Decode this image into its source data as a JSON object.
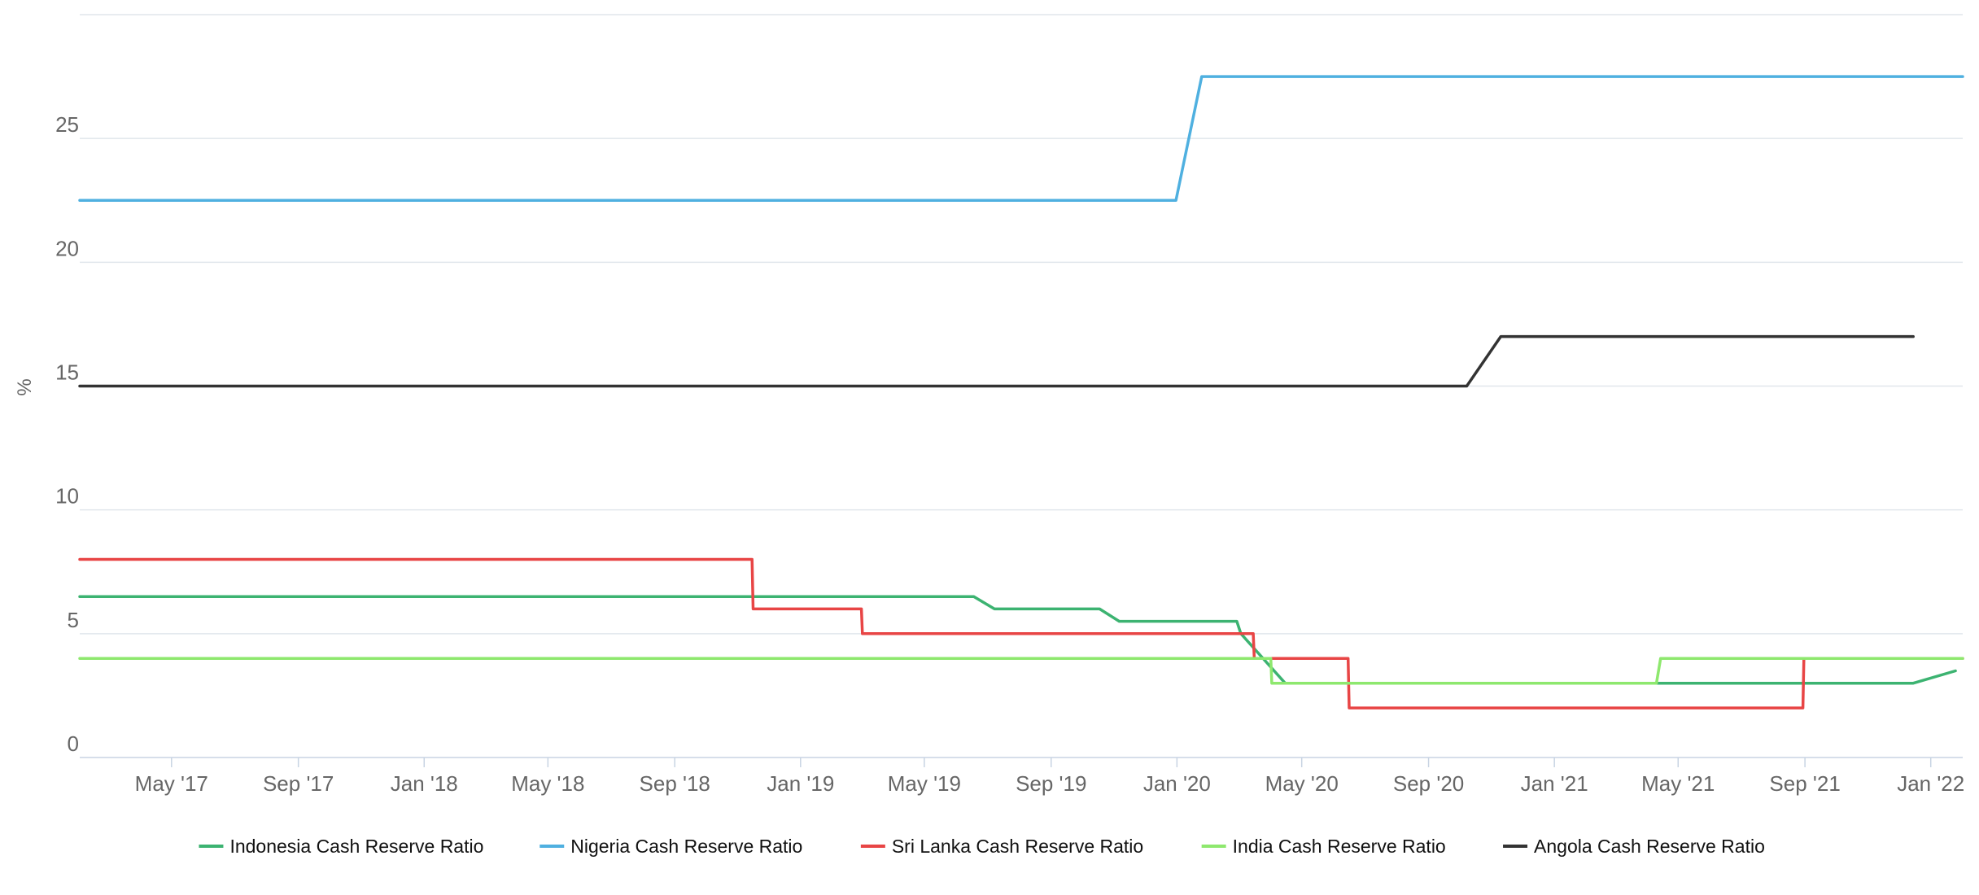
{
  "chart_data": {
    "type": "line",
    "ylabel": "%",
    "ylim": [
      0,
      30
    ],
    "yticks": [
      0,
      5,
      10,
      15,
      20,
      25
    ],
    "xlim": [
      "2017-02-01",
      "2022-02-01"
    ],
    "xticks": [
      {
        "date": "2017-05-01",
        "label": "May '17"
      },
      {
        "date": "2017-09-01",
        "label": "Sep '17"
      },
      {
        "date": "2018-01-01",
        "label": "Jan '18"
      },
      {
        "date": "2018-05-01",
        "label": "May '18"
      },
      {
        "date": "2018-09-01",
        "label": "Sep '18"
      },
      {
        "date": "2019-01-01",
        "label": "Jan '19"
      },
      {
        "date": "2019-05-01",
        "label": "May '19"
      },
      {
        "date": "2019-09-01",
        "label": "Sep '19"
      },
      {
        "date": "2020-01-01",
        "label": "Jan '20"
      },
      {
        "date": "2020-05-01",
        "label": "May '20"
      },
      {
        "date": "2020-09-01",
        "label": "Sep '20"
      },
      {
        "date": "2021-01-01",
        "label": "Jan '21"
      },
      {
        "date": "2021-05-01",
        "label": "May '21"
      },
      {
        "date": "2021-09-01",
        "label": "Sep '21"
      },
      {
        "date": "2022-01-01",
        "label": "Jan '22"
      }
    ],
    "grid": true,
    "legend_position": "bottom",
    "series": [
      {
        "name": "Indonesia Cash Reserve Ratio",
        "color": "#3cb371",
        "points": [
          [
            "2017-02-01",
            6.5
          ],
          [
            "2019-06-18",
            6.5
          ],
          [
            "2019-07-08",
            6.0
          ],
          [
            "2019-10-18",
            6.0
          ],
          [
            "2019-11-06",
            5.5
          ],
          [
            "2020-02-28",
            5.5
          ],
          [
            "2020-03-03",
            5.0
          ],
          [
            "2020-04-15",
            3.0
          ],
          [
            "2021-10-15",
            3.0
          ],
          [
            "2021-12-15",
            3.0
          ],
          [
            "2022-01-25",
            3.5
          ]
        ]
      },
      {
        "name": "Nigeria Cash Reserve Ratio",
        "color": "#4fb0e0",
        "points": [
          [
            "2017-02-01",
            22.5
          ],
          [
            "2019-12-31",
            22.5
          ],
          [
            "2020-01-25",
            27.5
          ],
          [
            "2022-02-01",
            27.5
          ]
        ]
      },
      {
        "name": "Sri Lanka Cash Reserve Ratio",
        "color": "#e84545",
        "points": [
          [
            "2017-02-01",
            8.0
          ],
          [
            "2018-11-15",
            8.0
          ],
          [
            "2018-11-16",
            6.0
          ],
          [
            "2019-03-01",
            6.0
          ],
          [
            "2019-03-02",
            5.0
          ],
          [
            "2020-03-15",
            5.0
          ],
          [
            "2020-03-16",
            4.0
          ],
          [
            "2020-06-15",
            4.0
          ],
          [
            "2020-06-16",
            2.0
          ],
          [
            "2021-08-30",
            2.0
          ],
          [
            "2021-08-31",
            4.0
          ],
          [
            "2022-02-01",
            4.0
          ]
        ]
      },
      {
        "name": "India Cash Reserve Ratio",
        "color": "#8ee86e",
        "points": [
          [
            "2017-02-01",
            4.0
          ],
          [
            "2020-04-01",
            4.0
          ],
          [
            "2020-04-02",
            3.0
          ],
          [
            "2021-04-10",
            3.0
          ],
          [
            "2021-04-14",
            4.0
          ],
          [
            "2022-02-01",
            4.0
          ]
        ]
      },
      {
        "name": "Angola Cash Reserve Ratio",
        "color": "#333333",
        "points": [
          [
            "2017-02-01",
            15.0
          ],
          [
            "2020-10-08",
            15.0
          ],
          [
            "2020-11-10",
            17.0
          ],
          [
            "2021-12-15",
            17.0
          ]
        ]
      }
    ]
  }
}
